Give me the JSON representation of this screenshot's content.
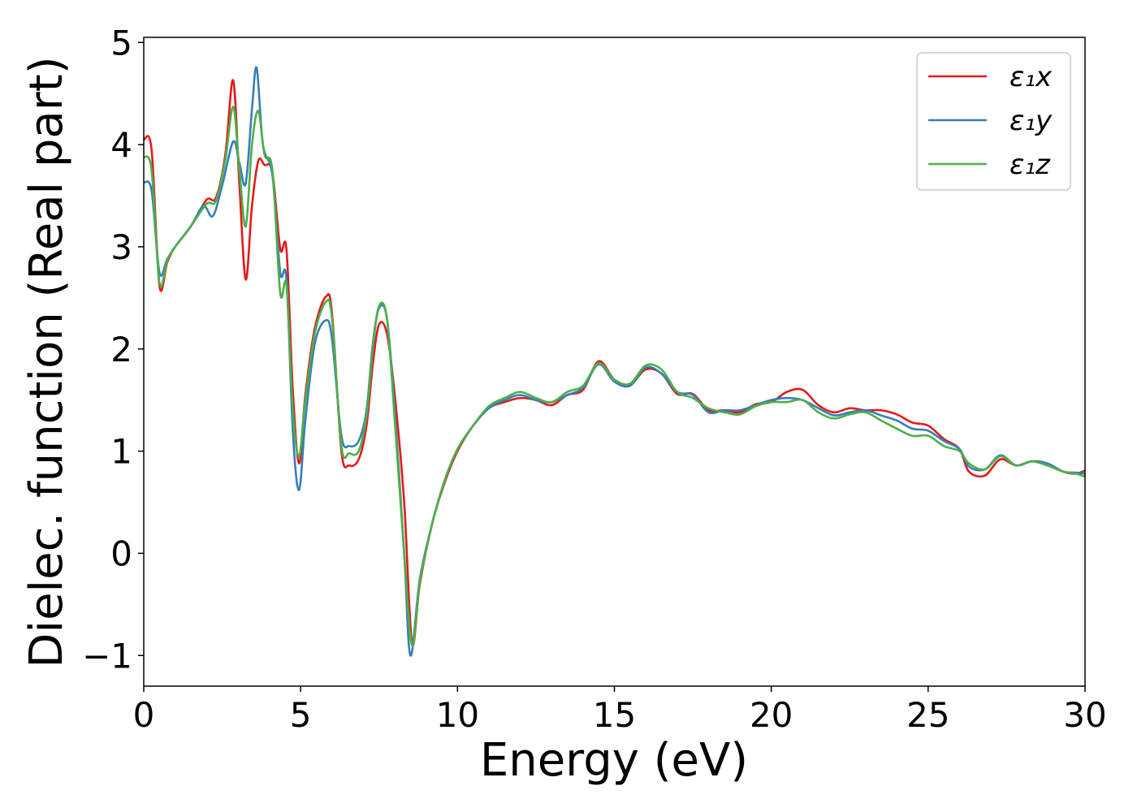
{
  "chart_data": {
    "type": "line",
    "title": "",
    "xlabel": "Energy (eV)",
    "ylabel": "Dielec. function (Real part)",
    "xlim": [
      0,
      30
    ],
    "ylim": [
      -1.3,
      5.05
    ],
    "xticks": [
      0,
      5,
      10,
      15,
      20,
      25,
      30
    ],
    "xtick_labels": [
      "0",
      "5",
      "10",
      "15",
      "20",
      "25",
      "30"
    ],
    "yticks": [
      -1,
      0,
      1,
      2,
      3,
      4,
      5
    ],
    "ytick_labels": [
      "−1",
      "0",
      "1",
      "2",
      "3",
      "4",
      "5"
    ],
    "grid": false,
    "legend_position": "top-right",
    "series": [
      {
        "name": "ε₁x",
        "color": "#e41a1c",
        "points": [
          [
            0,
            4.05
          ],
          [
            0.25,
            3.95
          ],
          [
            0.5,
            2.62
          ],
          [
            0.75,
            2.85
          ],
          [
            1.0,
            3.0
          ],
          [
            1.5,
            3.2
          ],
          [
            2.0,
            3.46
          ],
          [
            2.3,
            3.48
          ],
          [
            2.6,
            3.9
          ],
          [
            2.85,
            4.63
          ],
          [
            3.05,
            3.6
          ],
          [
            3.25,
            2.68
          ],
          [
            3.45,
            3.4
          ],
          [
            3.65,
            3.84
          ],
          [
            3.85,
            3.8
          ],
          [
            4.1,
            3.73
          ],
          [
            4.35,
            2.98
          ],
          [
            4.55,
            2.97
          ],
          [
            4.75,
            1.6
          ],
          [
            4.95,
            0.88
          ],
          [
            5.15,
            1.55
          ],
          [
            5.45,
            2.2
          ],
          [
            5.8,
            2.51
          ],
          [
            6.0,
            2.35
          ],
          [
            6.3,
            1.0
          ],
          [
            6.55,
            0.86
          ],
          [
            6.85,
            0.92
          ],
          [
            7.1,
            1.25
          ],
          [
            7.3,
            1.85
          ],
          [
            7.5,
            2.24
          ],
          [
            7.75,
            2.15
          ],
          [
            8.0,
            1.55
          ],
          [
            8.3,
            0.5
          ],
          [
            8.55,
            -0.88
          ],
          [
            8.8,
            -0.3
          ],
          [
            9.2,
            0.3
          ],
          [
            9.6,
            0.7
          ],
          [
            10.0,
            1.0
          ],
          [
            10.5,
            1.25
          ],
          [
            11.0,
            1.42
          ],
          [
            11.5,
            1.48
          ],
          [
            12.0,
            1.52
          ],
          [
            12.5,
            1.5
          ],
          [
            13.0,
            1.45
          ],
          [
            13.5,
            1.55
          ],
          [
            14.0,
            1.6
          ],
          [
            14.5,
            1.88
          ],
          [
            15.0,
            1.7
          ],
          [
            15.5,
            1.65
          ],
          [
            16.0,
            1.8
          ],
          [
            16.5,
            1.76
          ],
          [
            17.0,
            1.56
          ],
          [
            17.5,
            1.56
          ],
          [
            18.0,
            1.4
          ],
          [
            18.5,
            1.4
          ],
          [
            19.0,
            1.38
          ],
          [
            19.5,
            1.46
          ],
          [
            20.0,
            1.48
          ],
          [
            20.5,
            1.58
          ],
          [
            21.0,
            1.6
          ],
          [
            21.5,
            1.45
          ],
          [
            22.0,
            1.38
          ],
          [
            22.5,
            1.42
          ],
          [
            23.0,
            1.4
          ],
          [
            23.5,
            1.4
          ],
          [
            24.0,
            1.36
          ],
          [
            24.5,
            1.28
          ],
          [
            25.0,
            1.25
          ],
          [
            25.5,
            1.12
          ],
          [
            26.0,
            1.02
          ],
          [
            26.3,
            0.8
          ],
          [
            26.8,
            0.76
          ],
          [
            27.3,
            0.92
          ],
          [
            27.8,
            0.86
          ],
          [
            28.3,
            0.9
          ],
          [
            28.8,
            0.88
          ],
          [
            29.3,
            0.8
          ],
          [
            29.7,
            0.78
          ],
          [
            30.0,
            0.81
          ]
        ]
      },
      {
        "name": "ε₁y",
        "color": "#377eb8",
        "points": [
          [
            0,
            3.63
          ],
          [
            0.25,
            3.55
          ],
          [
            0.5,
            2.75
          ],
          [
            0.75,
            2.88
          ],
          [
            1.0,
            3.0
          ],
          [
            1.5,
            3.2
          ],
          [
            1.9,
            3.4
          ],
          [
            2.2,
            3.3
          ],
          [
            2.5,
            3.6
          ],
          [
            2.85,
            4.03
          ],
          [
            3.05,
            3.82
          ],
          [
            3.25,
            3.62
          ],
          [
            3.45,
            4.35
          ],
          [
            3.6,
            4.75
          ],
          [
            3.8,
            4.0
          ],
          [
            4.1,
            3.7
          ],
          [
            4.35,
            2.75
          ],
          [
            4.55,
            2.68
          ],
          [
            4.75,
            1.2
          ],
          [
            4.95,
            0.62
          ],
          [
            5.15,
            1.3
          ],
          [
            5.45,
            2.05
          ],
          [
            5.8,
            2.28
          ],
          [
            6.0,
            2.1
          ],
          [
            6.3,
            1.15
          ],
          [
            6.55,
            1.05
          ],
          [
            6.85,
            1.1
          ],
          [
            7.1,
            1.4
          ],
          [
            7.3,
            2.05
          ],
          [
            7.5,
            2.4
          ],
          [
            7.75,
            2.3
          ],
          [
            8.0,
            1.4
          ],
          [
            8.3,
            0.0
          ],
          [
            8.5,
            -1.0
          ],
          [
            8.8,
            -0.25
          ],
          [
            9.2,
            0.3
          ],
          [
            9.6,
            0.72
          ],
          [
            10.0,
            1.02
          ],
          [
            10.5,
            1.25
          ],
          [
            11.0,
            1.42
          ],
          [
            11.5,
            1.5
          ],
          [
            12.0,
            1.55
          ],
          [
            12.5,
            1.5
          ],
          [
            13.0,
            1.48
          ],
          [
            13.5,
            1.55
          ],
          [
            14.0,
            1.62
          ],
          [
            14.5,
            1.85
          ],
          [
            15.0,
            1.68
          ],
          [
            15.5,
            1.64
          ],
          [
            16.0,
            1.82
          ],
          [
            16.5,
            1.76
          ],
          [
            17.0,
            1.58
          ],
          [
            17.5,
            1.55
          ],
          [
            18.0,
            1.38
          ],
          [
            18.5,
            1.4
          ],
          [
            19.0,
            1.4
          ],
          [
            19.5,
            1.45
          ],
          [
            20.0,
            1.5
          ],
          [
            20.5,
            1.52
          ],
          [
            21.0,
            1.5
          ],
          [
            21.5,
            1.42
          ],
          [
            22.0,
            1.35
          ],
          [
            22.5,
            1.38
          ],
          [
            23.0,
            1.4
          ],
          [
            23.5,
            1.35
          ],
          [
            24.0,
            1.3
          ],
          [
            24.5,
            1.22
          ],
          [
            25.0,
            1.2
          ],
          [
            25.5,
            1.1
          ],
          [
            26.0,
            1.02
          ],
          [
            26.3,
            0.85
          ],
          [
            26.8,
            0.82
          ],
          [
            27.3,
            0.96
          ],
          [
            27.8,
            0.86
          ],
          [
            28.3,
            0.9
          ],
          [
            28.8,
            0.88
          ],
          [
            29.3,
            0.8
          ],
          [
            29.7,
            0.79
          ],
          [
            30.0,
            0.78
          ]
        ]
      },
      {
        "name": "ε₁z",
        "color": "#4daf4a",
        "points": [
          [
            0,
            3.88
          ],
          [
            0.25,
            3.75
          ],
          [
            0.5,
            2.65
          ],
          [
            0.75,
            2.87
          ],
          [
            1.0,
            3.0
          ],
          [
            1.5,
            3.2
          ],
          [
            2.0,
            3.42
          ],
          [
            2.3,
            3.45
          ],
          [
            2.6,
            3.85
          ],
          [
            2.85,
            4.37
          ],
          [
            3.05,
            3.75
          ],
          [
            3.25,
            3.2
          ],
          [
            3.45,
            4.0
          ],
          [
            3.65,
            4.33
          ],
          [
            3.85,
            3.9
          ],
          [
            4.1,
            3.75
          ],
          [
            4.35,
            2.55
          ],
          [
            4.55,
            2.62
          ],
          [
            4.75,
            1.4
          ],
          [
            4.95,
            0.95
          ],
          [
            5.15,
            1.5
          ],
          [
            5.45,
            2.15
          ],
          [
            5.8,
            2.46
          ],
          [
            6.0,
            2.3
          ],
          [
            6.3,
            1.05
          ],
          [
            6.55,
            0.98
          ],
          [
            6.85,
            1.0
          ],
          [
            7.1,
            1.35
          ],
          [
            7.3,
            2.0
          ],
          [
            7.5,
            2.42
          ],
          [
            7.75,
            2.3
          ],
          [
            8.0,
            1.3
          ],
          [
            8.3,
            0.0
          ],
          [
            8.55,
            -0.9
          ],
          [
            8.8,
            -0.28
          ],
          [
            9.2,
            0.3
          ],
          [
            9.6,
            0.72
          ],
          [
            10.0,
            1.02
          ],
          [
            10.5,
            1.25
          ],
          [
            11.0,
            1.44
          ],
          [
            11.5,
            1.52
          ],
          [
            12.0,
            1.58
          ],
          [
            12.5,
            1.52
          ],
          [
            13.0,
            1.48
          ],
          [
            13.5,
            1.58
          ],
          [
            14.0,
            1.64
          ],
          [
            14.5,
            1.86
          ],
          [
            15.0,
            1.7
          ],
          [
            15.5,
            1.66
          ],
          [
            16.0,
            1.84
          ],
          [
            16.5,
            1.8
          ],
          [
            17.0,
            1.58
          ],
          [
            17.5,
            1.52
          ],
          [
            18.0,
            1.42
          ],
          [
            18.5,
            1.38
          ],
          [
            19.0,
            1.36
          ],
          [
            19.5,
            1.44
          ],
          [
            20.0,
            1.48
          ],
          [
            20.5,
            1.48
          ],
          [
            21.0,
            1.5
          ],
          [
            21.5,
            1.38
          ],
          [
            22.0,
            1.32
          ],
          [
            22.5,
            1.36
          ],
          [
            23.0,
            1.38
          ],
          [
            23.5,
            1.3
          ],
          [
            24.0,
            1.22
          ],
          [
            24.5,
            1.15
          ],
          [
            25.0,
            1.15
          ],
          [
            25.5,
            1.05
          ],
          [
            26.0,
            1.0
          ],
          [
            26.3,
            0.88
          ],
          [
            26.8,
            0.82
          ],
          [
            27.3,
            0.95
          ],
          [
            27.8,
            0.86
          ],
          [
            28.3,
            0.9
          ],
          [
            28.8,
            0.86
          ],
          [
            29.3,
            0.8
          ],
          [
            29.7,
            0.78
          ],
          [
            30.0,
            0.75
          ]
        ]
      }
    ]
  }
}
